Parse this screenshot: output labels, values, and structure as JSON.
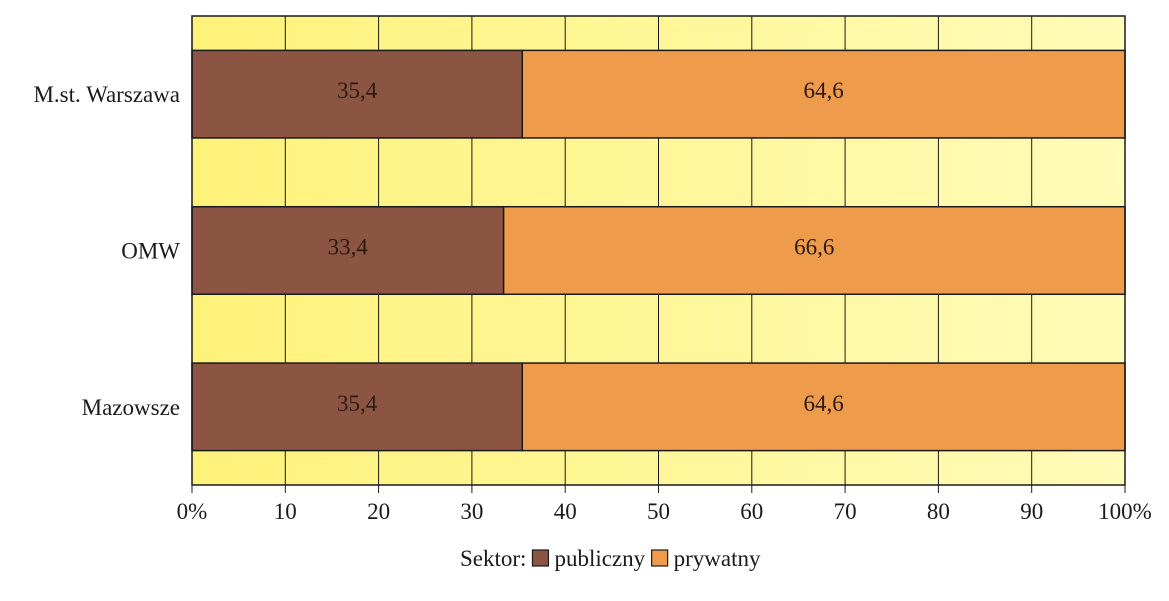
{
  "chart_data": {
    "type": "bar",
    "orientation": "horizontal",
    "stacked": "percent",
    "categories": [
      "M.st. Warszawa",
      "OMW",
      "Mazowsze"
    ],
    "series": [
      {
        "name": "publiczny",
        "values": [
          35.4,
          33.4,
          35.4
        ],
        "labels": [
          "35,4",
          "33,4",
          "35,4"
        ],
        "color": "#8b5443"
      },
      {
        "name": "prywatny",
        "values": [
          64.6,
          66.6,
          64.6
        ],
        "labels": [
          "64,6",
          "66,6",
          "64,6"
        ],
        "color": "#ef9b4c"
      }
    ],
    "xlim": [
      0,
      100
    ],
    "x_ticks": [
      {
        "value": 0,
        "label": "0%"
      },
      {
        "value": 10,
        "label": "10"
      },
      {
        "value": 20,
        "label": "20"
      },
      {
        "value": 30,
        "label": "30"
      },
      {
        "value": 40,
        "label": "40"
      },
      {
        "value": 50,
        "label": "50"
      },
      {
        "value": 60,
        "label": "60"
      },
      {
        "value": 70,
        "label": "70"
      },
      {
        "value": 80,
        "label": "80"
      },
      {
        "value": 90,
        "label": "90"
      },
      {
        "value": 100,
        "label": "100%"
      }
    ],
    "grid": true,
    "legend": {
      "title": "Sektor:",
      "placement": "bottom-center"
    },
    "colors": {
      "background_left": "#fff27a",
      "background_right": "#fffbb8",
      "grid": "#1a1a1a",
      "bar_border": "#1a1a1a"
    }
  }
}
